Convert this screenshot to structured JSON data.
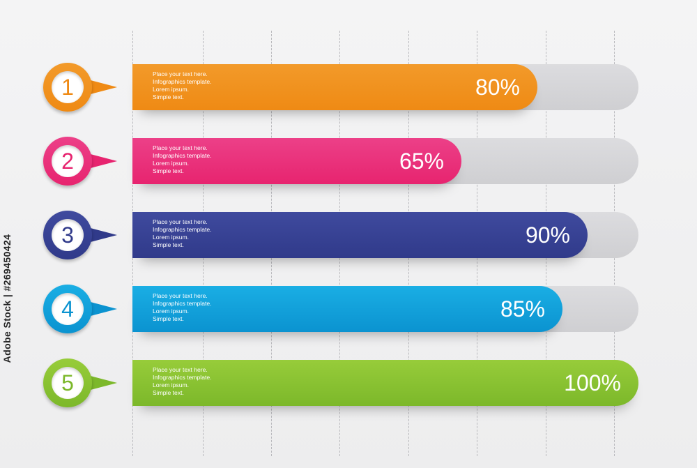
{
  "chart_data": {
    "type": "bar",
    "orientation": "horizontal",
    "categories": [
      "1",
      "2",
      "3",
      "4",
      "5"
    ],
    "values": [
      80,
      65,
      90,
      85,
      100
    ],
    "value_labels": [
      "80%",
      "65%",
      "90%",
      "85%",
      "100%"
    ],
    "bar_text": [
      [
        "Place your text here.",
        "Infographics template.",
        "Lorem ipsum.",
        "Simple text."
      ],
      [
        "Place your text here.",
        "Infographics template.",
        "Lorem ipsum.",
        "Simple text."
      ],
      [
        "Place your text here.",
        "Infographics template.",
        "Lorem ipsum.",
        "Simple text."
      ],
      [
        "Place your text here.",
        "Infographics template.",
        "Lorem ipsum.",
        "Simple text."
      ],
      [
        "Place your text here.",
        "Infographics template.",
        "Lorem ipsum.",
        "Simple text."
      ]
    ],
    "xlim": [
      0,
      100
    ],
    "grid": true,
    "colors": [
      [
        "#f29a2a",
        "#ef8a14"
      ],
      [
        "#ec4088",
        "#e7246f"
      ],
      [
        "#3f4a9e",
        "#303a8a"
      ],
      [
        "#1aaee4",
        "#0b93d0"
      ],
      [
        "#97cc3a",
        "#7cb82a"
      ]
    ],
    "number_colors": [
      "#ef8a14",
      "#e7246f",
      "#303a8a",
      "#0b93d0",
      "#7cb82a"
    ]
  },
  "stock_id": "Adobe Stock | #269450424"
}
